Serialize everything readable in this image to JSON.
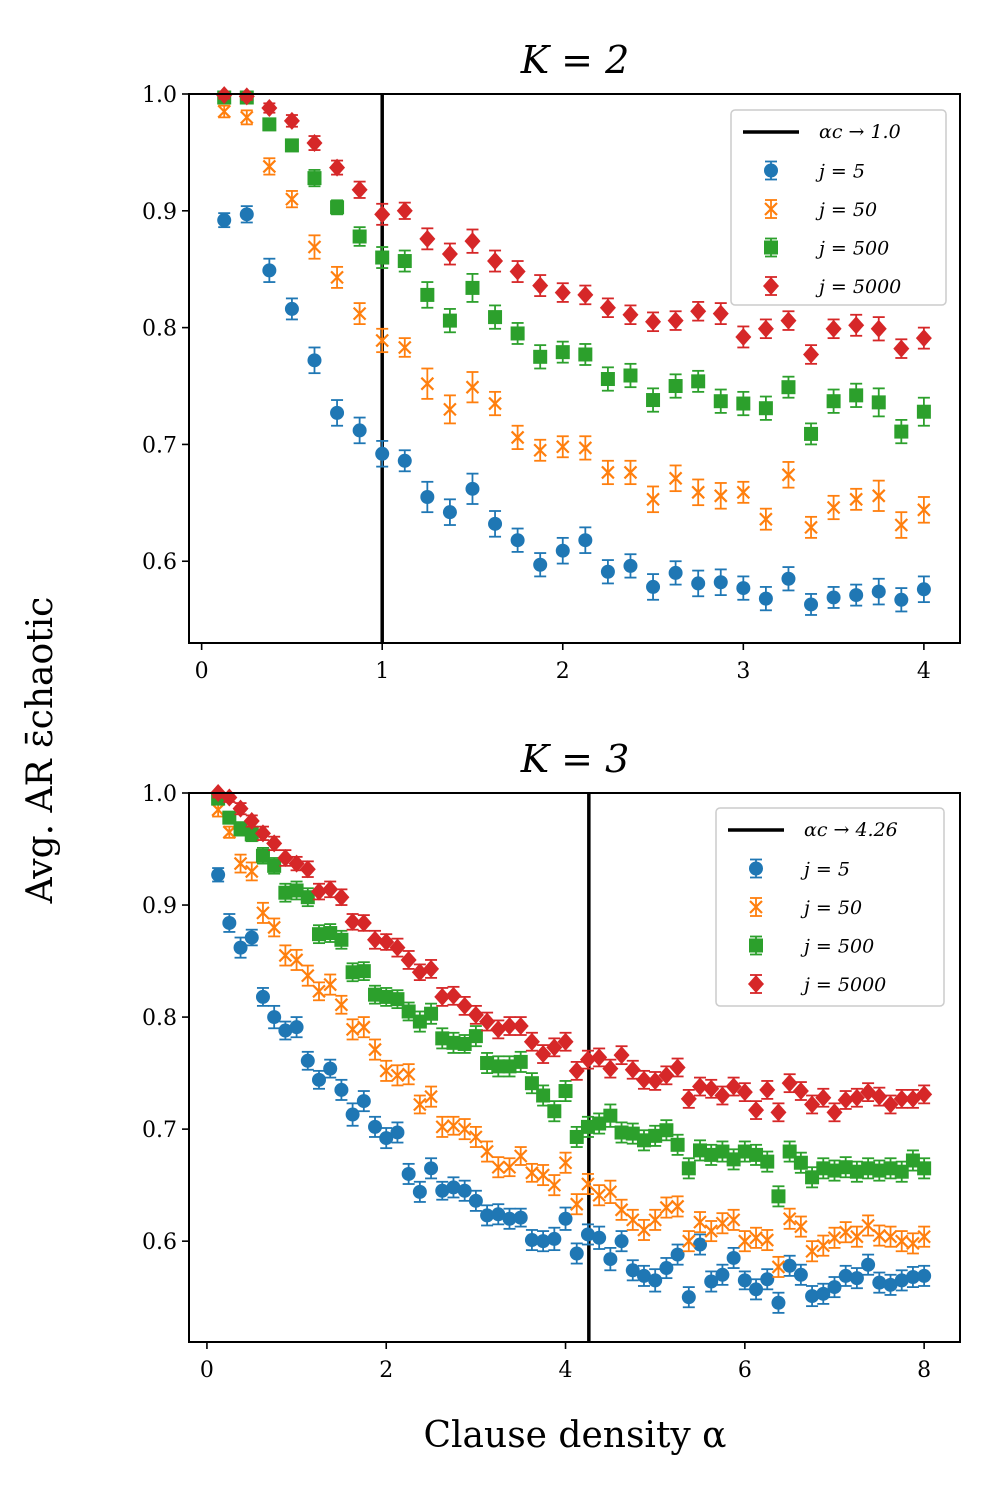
{
  "figure": {
    "ylabel": "Avg. AR ε̄chaotic",
    "xlabel": "Clause density α"
  },
  "chart_data": [
    {
      "type": "scatter",
      "title": "K = 2",
      "xlim": [
        -0.07,
        4.2
      ],
      "ylim": [
        0.53,
        1.0
      ],
      "xticks": [
        0,
        1,
        2,
        3,
        4
      ],
      "xtick_labels": [
        "0",
        "1",
        "2",
        "3",
        "4"
      ],
      "yticks": [
        0.6,
        0.7,
        0.8,
        0.9,
        1.0
      ],
      "ytick_labels": [
        "0.6",
        "0.7",
        "0.8",
        "0.9",
        "1.0"
      ],
      "vline": {
        "x": 1.0,
        "label": "αc → 1.0"
      },
      "x": [
        0.125,
        0.25,
        0.375,
        0.5,
        0.625,
        0.75,
        0.875,
        1.0,
        1.125,
        1.25,
        1.375,
        1.5,
        1.625,
        1.75,
        1.875,
        2.0,
        2.125,
        2.25,
        2.375,
        2.5,
        2.625,
        2.75,
        2.875,
        3.0,
        3.125,
        3.25,
        3.375,
        3.5,
        3.625,
        3.75,
        3.875,
        4.0
      ],
      "series": [
        {
          "name": "j = 5",
          "color": "#1f77b4",
          "marker": "circle",
          "values": [
            0.892,
            0.897,
            0.849,
            0.816,
            0.772,
            0.727,
            0.712,
            0.692,
            0.686,
            0.655,
            0.642,
            0.662,
            0.632,
            0.618,
            0.597,
            0.609,
            0.618,
            0.591,
            0.596,
            0.578,
            0.59,
            0.581,
            0.582,
            0.577,
            0.568,
            0.585,
            0.563,
            0.569,
            0.571,
            0.574,
            0.567,
            0.576
          ],
          "errors": [
            0.006,
            0.007,
            0.01,
            0.009,
            0.011,
            0.011,
            0.011,
            0.011,
            0.009,
            0.013,
            0.011,
            0.013,
            0.011,
            0.01,
            0.01,
            0.011,
            0.011,
            0.01,
            0.01,
            0.011,
            0.01,
            0.011,
            0.011,
            0.01,
            0.01,
            0.01,
            0.009,
            0.009,
            0.009,
            0.011,
            0.01,
            0.011
          ]
        },
        {
          "name": "j = 50",
          "color": "#ff7f0e",
          "marker": "x",
          "values": [
            0.985,
            0.98,
            0.938,
            0.91,
            0.869,
            0.843,
            0.812,
            0.789,
            0.783,
            0.752,
            0.73,
            0.749,
            0.735,
            0.706,
            0.695,
            0.698,
            0.697,
            0.676,
            0.676,
            0.653,
            0.671,
            0.659,
            0.656,
            0.659,
            0.636,
            0.674,
            0.629,
            0.646,
            0.653,
            0.656,
            0.631,
            0.644
          ],
          "errors": [
            0.005,
            0.006,
            0.007,
            0.007,
            0.01,
            0.009,
            0.009,
            0.01,
            0.008,
            0.013,
            0.012,
            0.013,
            0.01,
            0.01,
            0.009,
            0.009,
            0.01,
            0.01,
            0.01,
            0.011,
            0.011,
            0.011,
            0.011,
            0.009,
            0.009,
            0.011,
            0.009,
            0.01,
            0.009,
            0.013,
            0.011,
            0.011
          ]
        },
        {
          "name": "j = 500",
          "color": "#2ca02c",
          "marker": "square",
          "values": [
            0.997,
            0.997,
            0.974,
            0.956,
            0.928,
            0.903,
            0.878,
            0.86,
            0.857,
            0.828,
            0.806,
            0.834,
            0.809,
            0.795,
            0.775,
            0.779,
            0.777,
            0.756,
            0.759,
            0.738,
            0.75,
            0.754,
            0.737,
            0.735,
            0.731,
            0.749,
            0.709,
            0.737,
            0.742,
            0.736,
            0.711,
            0.728
          ],
          "errors": [
            0.003,
            0.003,
            0.005,
            0.005,
            0.007,
            0.006,
            0.008,
            0.009,
            0.009,
            0.011,
            0.01,
            0.012,
            0.01,
            0.009,
            0.01,
            0.009,
            0.009,
            0.01,
            0.01,
            0.01,
            0.01,
            0.009,
            0.01,
            0.01,
            0.01,
            0.009,
            0.009,
            0.01,
            0.01,
            0.012,
            0.01,
            0.012
          ]
        },
        {
          "name": "j = 5000",
          "color": "#d62728",
          "marker": "diamond",
          "values": [
            0.999,
            0.998,
            0.988,
            0.977,
            0.958,
            0.937,
            0.918,
            0.897,
            0.9,
            0.876,
            0.863,
            0.874,
            0.857,
            0.848,
            0.836,
            0.83,
            0.828,
            0.817,
            0.811,
            0.805,
            0.806,
            0.814,
            0.812,
            0.792,
            0.799,
            0.806,
            0.777,
            0.799,
            0.802,
            0.799,
            0.782,
            0.791
          ],
          "errors": [
            0.003,
            0.003,
            0.004,
            0.005,
            0.006,
            0.006,
            0.007,
            0.009,
            0.007,
            0.009,
            0.009,
            0.01,
            0.009,
            0.009,
            0.009,
            0.008,
            0.008,
            0.008,
            0.008,
            0.008,
            0.008,
            0.008,
            0.009,
            0.009,
            0.008,
            0.008,
            0.008,
            0.008,
            0.009,
            0.01,
            0.008,
            0.009
          ]
        }
      ],
      "legend_loc": "top-right"
    },
    {
      "type": "scatter",
      "title": "K = 3",
      "xlim": [
        -0.2,
        8.4
      ],
      "ylim": [
        0.51,
        1.0
      ],
      "xticks": [
        0,
        2,
        4,
        6,
        8
      ],
      "xtick_labels": [
        "0",
        "2",
        "4",
        "6",
        "8"
      ],
      "yticks": [
        0.6,
        0.7,
        0.8,
        0.9,
        1.0
      ],
      "ytick_labels": [
        "0.6",
        "0.7",
        "0.8",
        "0.9",
        "1.0"
      ],
      "vline": {
        "x": 4.26,
        "label": "αc → 4.26"
      },
      "x": [
        0.125,
        0.25,
        0.375,
        0.5,
        0.625,
        0.75,
        0.875,
        1.0,
        1.125,
        1.25,
        1.375,
        1.5,
        1.625,
        1.75,
        1.875,
        2.0,
        2.125,
        2.25,
        2.375,
        2.5,
        2.625,
        2.75,
        2.875,
        3.0,
        3.125,
        3.25,
        3.375,
        3.5,
        3.625,
        3.75,
        3.875,
        4.0,
        4.125,
        4.25,
        4.375,
        4.5,
        4.625,
        4.75,
        4.875,
        5.0,
        5.125,
        5.25,
        5.375,
        5.5,
        5.625,
        5.75,
        5.875,
        6.0,
        6.125,
        6.25,
        6.375,
        6.5,
        6.625,
        6.75,
        6.875,
        7.0,
        7.125,
        7.25,
        7.375,
        7.5,
        7.625,
        7.75,
        7.875,
        8.0
      ],
      "series": [
        {
          "name": "j = 5",
          "color": "#1f77b4",
          "marker": "circle",
          "values": [
            0.927,
            0.884,
            0.862,
            0.871,
            0.818,
            0.8,
            0.788,
            0.791,
            0.761,
            0.744,
            0.754,
            0.735,
            0.713,
            0.725,
            0.702,
            0.692,
            0.697,
            0.66,
            0.644,
            0.665,
            0.645,
            0.648,
            0.645,
            0.636,
            0.623,
            0.624,
            0.62,
            0.621,
            0.601,
            0.6,
            0.602,
            0.62,
            0.589,
            0.606,
            0.603,
            0.584,
            0.6,
            0.574,
            0.569,
            0.565,
            0.576,
            0.588,
            0.55,
            0.597,
            0.564,
            0.57,
            0.585,
            0.565,
            0.557,
            0.566,
            0.545,
            0.578,
            0.57,
            0.551,
            0.553,
            0.559,
            0.569,
            0.567,
            0.579,
            0.563,
            0.561,
            0.565,
            0.568,
            0.569
          ],
          "errors": [
            0.006,
            0.008,
            0.009,
            0.007,
            0.008,
            0.01,
            0.008,
            0.009,
            0.008,
            0.008,
            0.008,
            0.009,
            0.01,
            0.009,
            0.009,
            0.009,
            0.009,
            0.009,
            0.009,
            0.009,
            0.008,
            0.009,
            0.009,
            0.009,
            0.009,
            0.009,
            0.009,
            0.008,
            0.009,
            0.009,
            0.01,
            0.01,
            0.009,
            0.009,
            0.01,
            0.01,
            0.009,
            0.009,
            0.009,
            0.01,
            0.009,
            0.009,
            0.009,
            0.009,
            0.009,
            0.009,
            0.009,
            0.008,
            0.009,
            0.009,
            0.009,
            0.009,
            0.009,
            0.009,
            0.009,
            0.009,
            0.009,
            0.009,
            0.009,
            0.009,
            0.009,
            0.009,
            0.009,
            0.009
          ]
        },
        {
          "name": "j = 50",
          "color": "#ff7f0e",
          "marker": "x",
          "values": [
            0.985,
            0.965,
            0.937,
            0.93,
            0.893,
            0.88,
            0.855,
            0.851,
            0.837,
            0.823,
            0.829,
            0.811,
            0.789,
            0.791,
            0.771,
            0.752,
            0.748,
            0.749,
            0.722,
            0.729,
            0.702,
            0.703,
            0.7,
            0.693,
            0.68,
            0.666,
            0.666,
            0.676,
            0.661,
            0.659,
            0.65,
            0.67,
            0.633,
            0.651,
            0.641,
            0.644,
            0.628,
            0.619,
            0.61,
            0.619,
            0.63,
            0.631,
            0.6,
            0.617,
            0.609,
            0.616,
            0.619,
            0.6,
            0.603,
            0.601,
            0.577,
            0.62,
            0.613,
            0.591,
            0.596,
            0.603,
            0.608,
            0.604,
            0.614,
            0.605,
            0.604,
            0.6,
            0.598,
            0.604
          ],
          "errors": [
            0.006,
            0.005,
            0.008,
            0.008,
            0.009,
            0.008,
            0.009,
            0.009,
            0.009,
            0.008,
            0.009,
            0.008,
            0.009,
            0.009,
            0.009,
            0.009,
            0.009,
            0.009,
            0.008,
            0.009,
            0.009,
            0.008,
            0.009,
            0.009,
            0.009,
            0.009,
            0.008,
            0.008,
            0.008,
            0.009,
            0.009,
            0.009,
            0.009,
            0.009,
            0.009,
            0.01,
            0.009,
            0.009,
            0.009,
            0.009,
            0.009,
            0.009,
            0.009,
            0.009,
            0.009,
            0.009,
            0.009,
            0.009,
            0.009,
            0.009,
            0.009,
            0.009,
            0.009,
            0.009,
            0.009,
            0.009,
            0.009,
            0.009,
            0.009,
            0.009,
            0.009,
            0.009,
            0.009,
            0.009
          ]
        },
        {
          "name": "j = 500",
          "color": "#2ca02c",
          "marker": "square",
          "values": [
            0.995,
            0.978,
            0.968,
            0.963,
            0.944,
            0.935,
            0.911,
            0.913,
            0.907,
            0.874,
            0.875,
            0.869,
            0.84,
            0.841,
            0.82,
            0.818,
            0.816,
            0.805,
            0.796,
            0.803,
            0.781,
            0.777,
            0.776,
            0.783,
            0.759,
            0.756,
            0.756,
            0.76,
            0.741,
            0.73,
            0.716,
            0.734,
            0.693,
            0.702,
            0.705,
            0.712,
            0.697,
            0.696,
            0.69,
            0.694,
            0.699,
            0.686,
            0.665,
            0.681,
            0.677,
            0.68,
            0.673,
            0.68,
            0.677,
            0.671,
            0.64,
            0.68,
            0.67,
            0.657,
            0.665,
            0.663,
            0.666,
            0.662,
            0.665,
            0.663,
            0.665,
            0.662,
            0.672,
            0.665
          ],
          "errors": [
            0.005,
            0.005,
            0.006,
            0.006,
            0.007,
            0.007,
            0.008,
            0.008,
            0.008,
            0.008,
            0.008,
            0.008,
            0.008,
            0.008,
            0.008,
            0.008,
            0.008,
            0.008,
            0.009,
            0.009,
            0.009,
            0.009,
            0.008,
            0.009,
            0.009,
            0.009,
            0.009,
            0.009,
            0.009,
            0.009,
            0.009,
            0.009,
            0.009,
            0.009,
            0.009,
            0.01,
            0.009,
            0.009,
            0.009,
            0.009,
            0.009,
            0.009,
            0.009,
            0.009,
            0.009,
            0.009,
            0.009,
            0.009,
            0.009,
            0.009,
            0.009,
            0.009,
            0.009,
            0.009,
            0.009,
            0.009,
            0.009,
            0.009,
            0.009,
            0.009,
            0.009,
            0.009,
            0.009,
            0.009
          ]
        },
        {
          "name": "j = 5000",
          "color": "#d62728",
          "marker": "diamond",
          "values": [
            1.0,
            0.996,
            0.986,
            0.975,
            0.964,
            0.955,
            0.942,
            0.937,
            0.932,
            0.912,
            0.914,
            0.907,
            0.885,
            0.884,
            0.869,
            0.867,
            0.862,
            0.851,
            0.84,
            0.843,
            0.818,
            0.819,
            0.81,
            0.802,
            0.796,
            0.789,
            0.792,
            0.792,
            0.778,
            0.767,
            0.773,
            0.778,
            0.752,
            0.762,
            0.764,
            0.754,
            0.766,
            0.753,
            0.744,
            0.743,
            0.748,
            0.755,
            0.727,
            0.738,
            0.736,
            0.73,
            0.738,
            0.733,
            0.717,
            0.735,
            0.715,
            0.741,
            0.734,
            0.722,
            0.728,
            0.715,
            0.726,
            0.728,
            0.733,
            0.729,
            0.722,
            0.727,
            0.727,
            0.731
          ],
          "errors": [
            0.004,
            0.004,
            0.005,
            0.005,
            0.006,
            0.006,
            0.007,
            0.006,
            0.007,
            0.007,
            0.007,
            0.007,
            0.007,
            0.007,
            0.008,
            0.007,
            0.008,
            0.008,
            0.007,
            0.008,
            0.008,
            0.008,
            0.008,
            0.008,
            0.008,
            0.008,
            0.008,
            0.008,
            0.008,
            0.008,
            0.008,
            0.008,
            0.008,
            0.008,
            0.008,
            0.008,
            0.008,
            0.008,
            0.008,
            0.008,
            0.008,
            0.008,
            0.008,
            0.008,
            0.008,
            0.008,
            0.008,
            0.008,
            0.008,
            0.008,
            0.008,
            0.008,
            0.008,
            0.008,
            0.008,
            0.008,
            0.008,
            0.008,
            0.008,
            0.008,
            0.008,
            0.008,
            0.008,
            0.008
          ]
        }
      ],
      "legend_loc": "top-right"
    }
  ]
}
